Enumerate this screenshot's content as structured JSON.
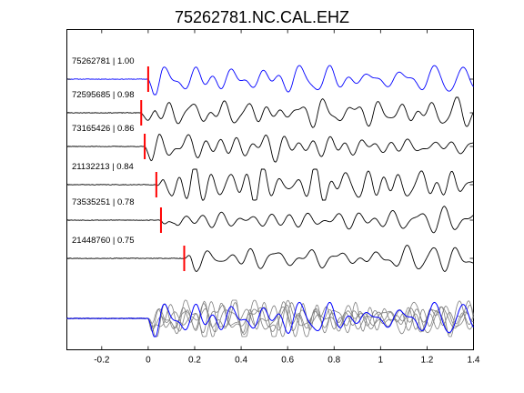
{
  "chart_data": {
    "type": "line",
    "title": "75262781.NC.CAL.EHZ",
    "xlabel": "",
    "ylabel": "",
    "xlim": [
      -0.35,
      1.4
    ],
    "x_ticks": [
      -0.2,
      0,
      0.2,
      0.4,
      0.6,
      0.8,
      1,
      1.2,
      1.4
    ],
    "x_tick_labels": [
      "-0.2",
      "0",
      "0.2",
      "0.4",
      "0.6",
      "0.8",
      "1",
      "1.2",
      "1.4"
    ],
    "grid": false,
    "colors": {
      "reference": "#0000ff",
      "trace": "#000000",
      "pick": "#ff0000",
      "stack_gray": "#808080"
    },
    "traces": [
      {
        "label": "75262781 | 1.00",
        "pick_time": 0.0,
        "color": "#0000ff",
        "seed": 11
      },
      {
        "label": "72595685 | 0.98",
        "pick_time": -0.03,
        "color": "#000000",
        "seed": 23
      },
      {
        "label": "73165426 | 0.86",
        "pick_time": -0.015,
        "color": "#000000",
        "seed": 37
      },
      {
        "label": "21132213 | 0.84",
        "pick_time": 0.035,
        "color": "#000000",
        "seed": 41
      },
      {
        "label": "73535251 | 0.78",
        "pick_time": 0.055,
        "color": "#000000",
        "seed": 53
      },
      {
        "label": "21448760 | 0.75",
        "pick_time": 0.155,
        "color": "#000000",
        "seed": 67
      }
    ],
    "stack": {
      "label": "",
      "gray_seeds": [
        71,
        83,
        97,
        101,
        113
      ],
      "reference_seed": 11
    }
  }
}
